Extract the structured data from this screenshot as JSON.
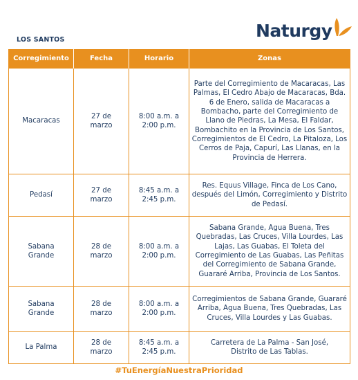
{
  "region": "LOS SANTOS",
  "logo": {
    "text": "Naturgy",
    "icon": "butterfly-logo-icon",
    "accent": "#e8901f",
    "brand": "#1f3a5f"
  },
  "table": {
    "headers": [
      "Corregimiento",
      "Fecha",
      "Horario",
      "Zonas"
    ],
    "rows": [
      {
        "corregimiento": "Macaracas",
        "fecha": "27 de marzo",
        "horario": "8:00 a.m. a 2:00 p.m.",
        "zonas": "Parte del Corregimiento de Macaracas, Las Palmas, El Cedro Abajo de Macaracas, Bda. 6 de Enero, salida de Macaracas a Bombacho, parte del Corregimiento de Llano de Piedras, La Mesa, El Faldar, Bombachito en la Provincia de Los Santos, Corregimientos de El Cedro, La Pitaloza, Los Cerros de Paja, Capurí, Las Llanas, en la Provincia de Herrera."
      },
      {
        "corregimiento": "Pedasí",
        "fecha": "27 de marzo",
        "horario": "8:45 a.m. a 2:45 p.m.",
        "zonas": "Res. Equus Village, Finca de Los Cano, después del Limón, Corregimiento y Distrito de Pedasí."
      },
      {
        "corregimiento": "Sabana Grande",
        "fecha": "28 de marzo",
        "horario": "8:00 a.m. a 2:00 p.m.",
        "zonas": "Sabana Grande, Agua Buena, Tres Quebradas, Las Cruces, Villa Lourdes, Las Lajas, Las Guabas, El Toleta del Corregimiento de Las Guabas, Las Peñitas del Corregimiento de Sabana Grande, Guararé Arriba, Provincia de Los Santos."
      },
      {
        "corregimiento": "Sabana Grande",
        "fecha": "28 de marzo",
        "horario": "8:00 a.m. a 2:00 p.m.",
        "zonas": "Corregimientos de Sabana Grande, Guararé Arriba, Agua Buena, Tres Quebradas, Las Cruces, Villa Lourdes y Las Guabas."
      },
      {
        "corregimiento": "La Palma",
        "fecha": "28 de marzo",
        "horario": "8:45 a.m. a 2:45 p.m.",
        "zonas": "Carretera de La Palma - San José, Distrito de Las Tablas."
      }
    ]
  },
  "hashtag": "#TuEnergíaNuestraPrioridad"
}
